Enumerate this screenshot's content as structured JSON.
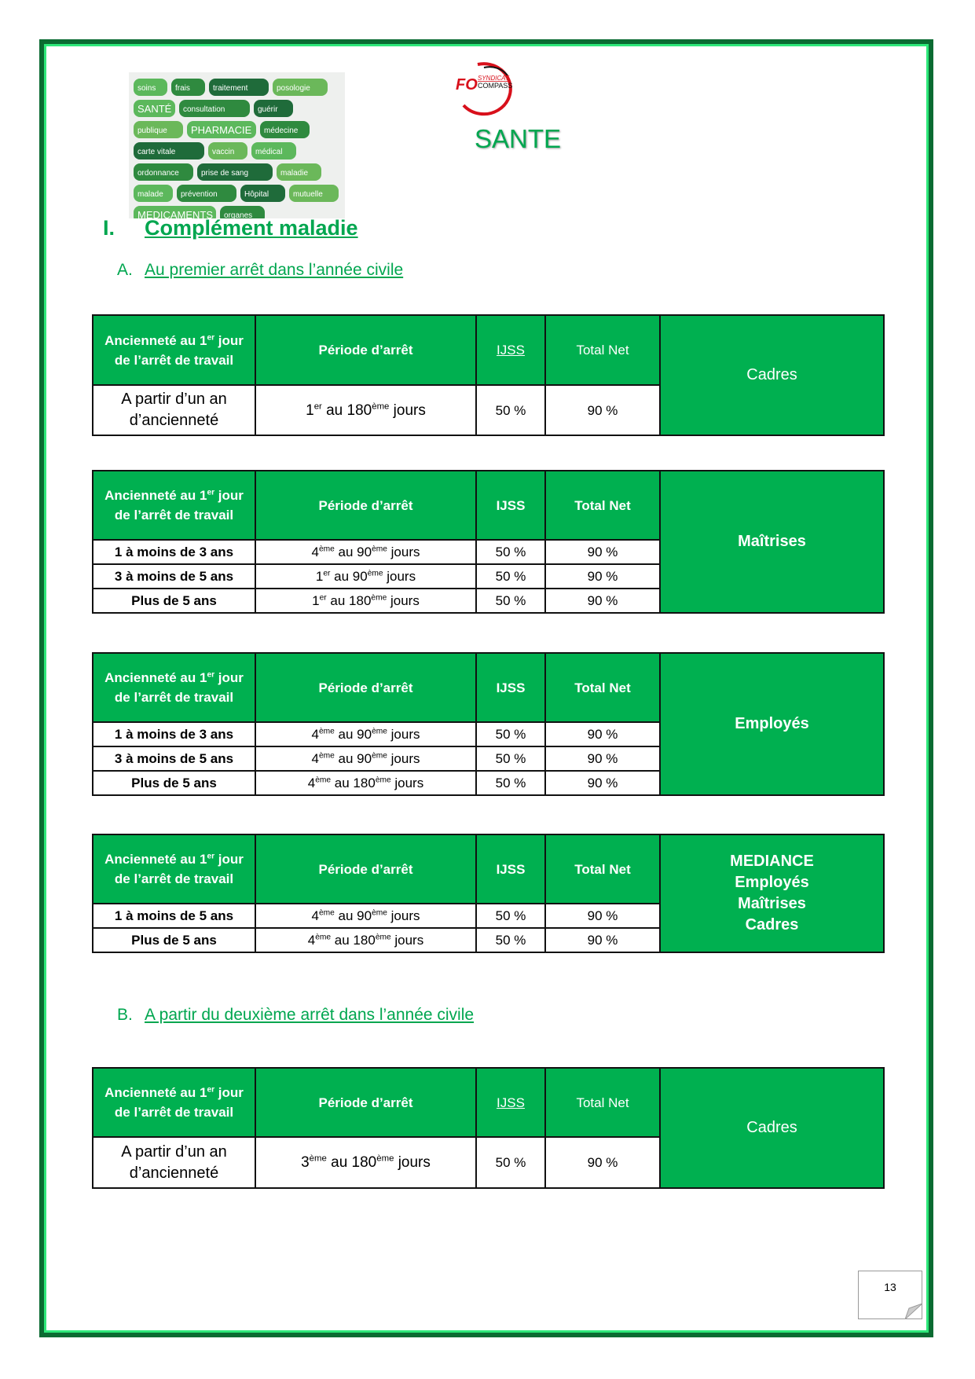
{
  "header": {
    "title": "SANTE",
    "logo_text": [
      "FO",
      "SYNDICAT",
      "COMPASS"
    ]
  },
  "image": {
    "words": [
      "soins",
      "frais",
      "traitement",
      "posologie",
      "SANTÉ",
      "consultation",
      "guérir",
      "publique",
      "PHARMACIE",
      "médecine",
      "carte vitale",
      "vaccin",
      "médical",
      "ordonnance",
      "prise de sang",
      "maladie",
      "malade",
      "prévention",
      "Hôpital",
      "mutuelle",
      "MEDICAMENTS",
      "organes"
    ]
  },
  "section": {
    "num": "I.",
    "title": "Complément maladie"
  },
  "sub_a": {
    "letter": "A.",
    "title": "Au premier arrêt dans l’année civile"
  },
  "sub_b": {
    "letter": "B.",
    "title": "A partir du deuxième arrêt dans l’année civile"
  },
  "colors": {
    "green": "#00b050",
    "border_dark": "#0b6b32",
    "border_light": "#2ee87a"
  },
  "tables": [
    {
      "headers": [
        "Ancienneté au 1er jour de l’arrêt de travail",
        "Période d’arrêt",
        "IJSS",
        "Total Net"
      ],
      "category": [
        "Cadres"
      ],
      "style": "normal",
      "rows": [
        [
          "A partir d’un an d’ancienneté",
          "1er au 180ème jours",
          "50 %",
          "90 %"
        ]
      ]
    },
    {
      "headers": [
        "Ancienneté au 1er jour de l’arrêt de travail",
        "Période d’arrêt",
        "IJSS",
        "Total Net"
      ],
      "category": [
        "Maîtrises"
      ],
      "style": "bold",
      "rows": [
        [
          "1 à moins de 3 ans",
          "4ème au 90ème jours",
          "50 %",
          "90 %"
        ],
        [
          "3 à moins de 5 ans",
          "1er au 90ème jours",
          "50 %",
          "90 %"
        ],
        [
          "Plus de 5 ans",
          "1er au 180ème jours",
          "50 %",
          "90 %"
        ]
      ]
    },
    {
      "headers": [
        "Ancienneté au 1er jour de l’arrêt de travail",
        "Période d’arrêt",
        "IJSS",
        "Total Net"
      ],
      "category": [
        "Employés"
      ],
      "style": "bold",
      "rows": [
        [
          "1 à moins de 3 ans",
          "4ème au 90ème jours",
          "50 %",
          "90 %"
        ],
        [
          "3 à moins de 5 ans",
          "4ème au 90ème jours",
          "50 %",
          "90 %"
        ],
        [
          "Plus de 5 ans",
          "4ème au 180ème jours",
          "50 %",
          "90 %"
        ]
      ]
    },
    {
      "headers": [
        "Ancienneté au 1er jour de l’arrêt de travail",
        "Période d’arrêt",
        "IJSS",
        "Total Net"
      ],
      "category": [
        "MEDIANCE",
        "Employés",
        "Maîtrises",
        "Cadres"
      ],
      "style": "bold",
      "rows": [
        [
          "1 à moins de 5 ans",
          "4ème au 90ème jours",
          "50 %",
          "90 %"
        ],
        [
          "Plus de 5 ans",
          "4ème au 180ème jours",
          "50 %",
          "90 %"
        ]
      ]
    },
    {
      "headers": [
        "Ancienneté au 1er jour de l’arrêt de travail",
        "Période d’arrêt",
        "IJSS",
        "Total Net"
      ],
      "category": [
        "Cadres"
      ],
      "style": "normal",
      "rows": [
        [
          "A partir d’un an d’ancienneté",
          "3ème au 180ème jours",
          "50 %",
          "90 %"
        ]
      ]
    }
  ],
  "footer": {
    "page_number": "13"
  }
}
